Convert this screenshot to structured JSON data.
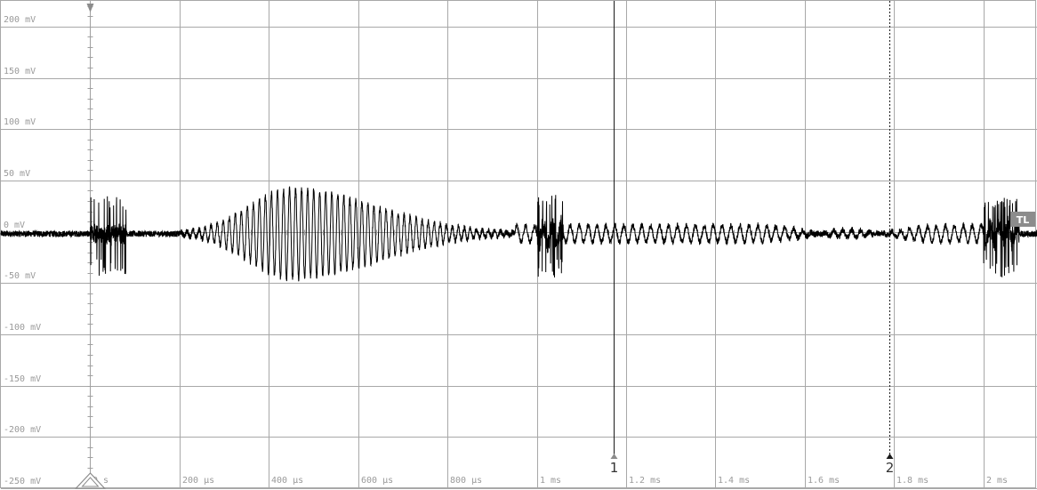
{
  "chart_data": {
    "type": "line",
    "title": "",
    "xlabel": "",
    "ylabel": "",
    "x_unit": "µs",
    "y_unit": "mV",
    "xlim": [
      -200,
      2120
    ],
    "ylim": [
      -250,
      225
    ],
    "grid": true,
    "y_ticks": [
      {
        "value": 200,
        "label": "200 mV"
      },
      {
        "value": 150,
        "label": "150 mV"
      },
      {
        "value": 100,
        "label": "100 mV"
      },
      {
        "value": 50,
        "label": "50 mV"
      },
      {
        "value": 0,
        "label": "0 mV"
      },
      {
        "value": -50,
        "label": "-50 mV"
      },
      {
        "value": -100,
        "label": "-100 mV"
      },
      {
        "value": -150,
        "label": "-150 mV"
      },
      {
        "value": -200,
        "label": "-200 mV"
      },
      {
        "value": -250,
        "label": "-250 mV"
      }
    ],
    "x_ticks": [
      {
        "value": 0,
        "label": "0 s"
      },
      {
        "value": 200,
        "label": "200 µs"
      },
      {
        "value": 400,
        "label": "400 µs"
      },
      {
        "value": 600,
        "label": "600 µs"
      },
      {
        "value": 800,
        "label": "800 µs"
      },
      {
        "value": 1000,
        "label": "1 ms"
      },
      {
        "value": 1200,
        "label": "1.2 ms"
      },
      {
        "value": 1400,
        "label": "1.4 ms"
      },
      {
        "value": 1600,
        "label": "1.6 ms"
      },
      {
        "value": 1800,
        "label": "1.8 ms"
      },
      {
        "value": 2000,
        "label": "2 ms"
      }
    ],
    "trigger_level": {
      "value": 0,
      "label": "TL"
    },
    "cursors": [
      {
        "label": "1",
        "x": 1172,
        "style": "solid"
      },
      {
        "label": "2",
        "x": 1790,
        "style": "dotted"
      }
    ],
    "series": [
      {
        "color": "#000000",
        "noise_mV": 3,
        "baseline_mV": -2,
        "bursts": [
          {
            "x_start": 200,
            "x_end": 950,
            "period_us": 13.5,
            "peak_x": 450,
            "peak_amplitude_mV": 44,
            "attack_us": 250,
            "decay_us": 500
          },
          {
            "x_start": 950,
            "x_end": 2080,
            "period_us": 20,
            "amplitude_mV": 8
          },
          {
            "x_start": 1500,
            "x_end": 1900,
            "period_us": 20,
            "peak_x": 1700,
            "peak_amplitude_mV": 12,
            "attack_us": 200,
            "decay_us": 200
          }
        ],
        "spikes": [
          {
            "x": 0,
            "x_end": 80,
            "min_mV": -45,
            "max_mV": 35
          },
          {
            "x": 1000,
            "x_end": 1060,
            "min_mV": -45,
            "max_mV": 36
          },
          {
            "x": 2000,
            "x_end": 2080,
            "min_mV": -45,
            "max_mV": 35
          }
        ]
      }
    ]
  }
}
